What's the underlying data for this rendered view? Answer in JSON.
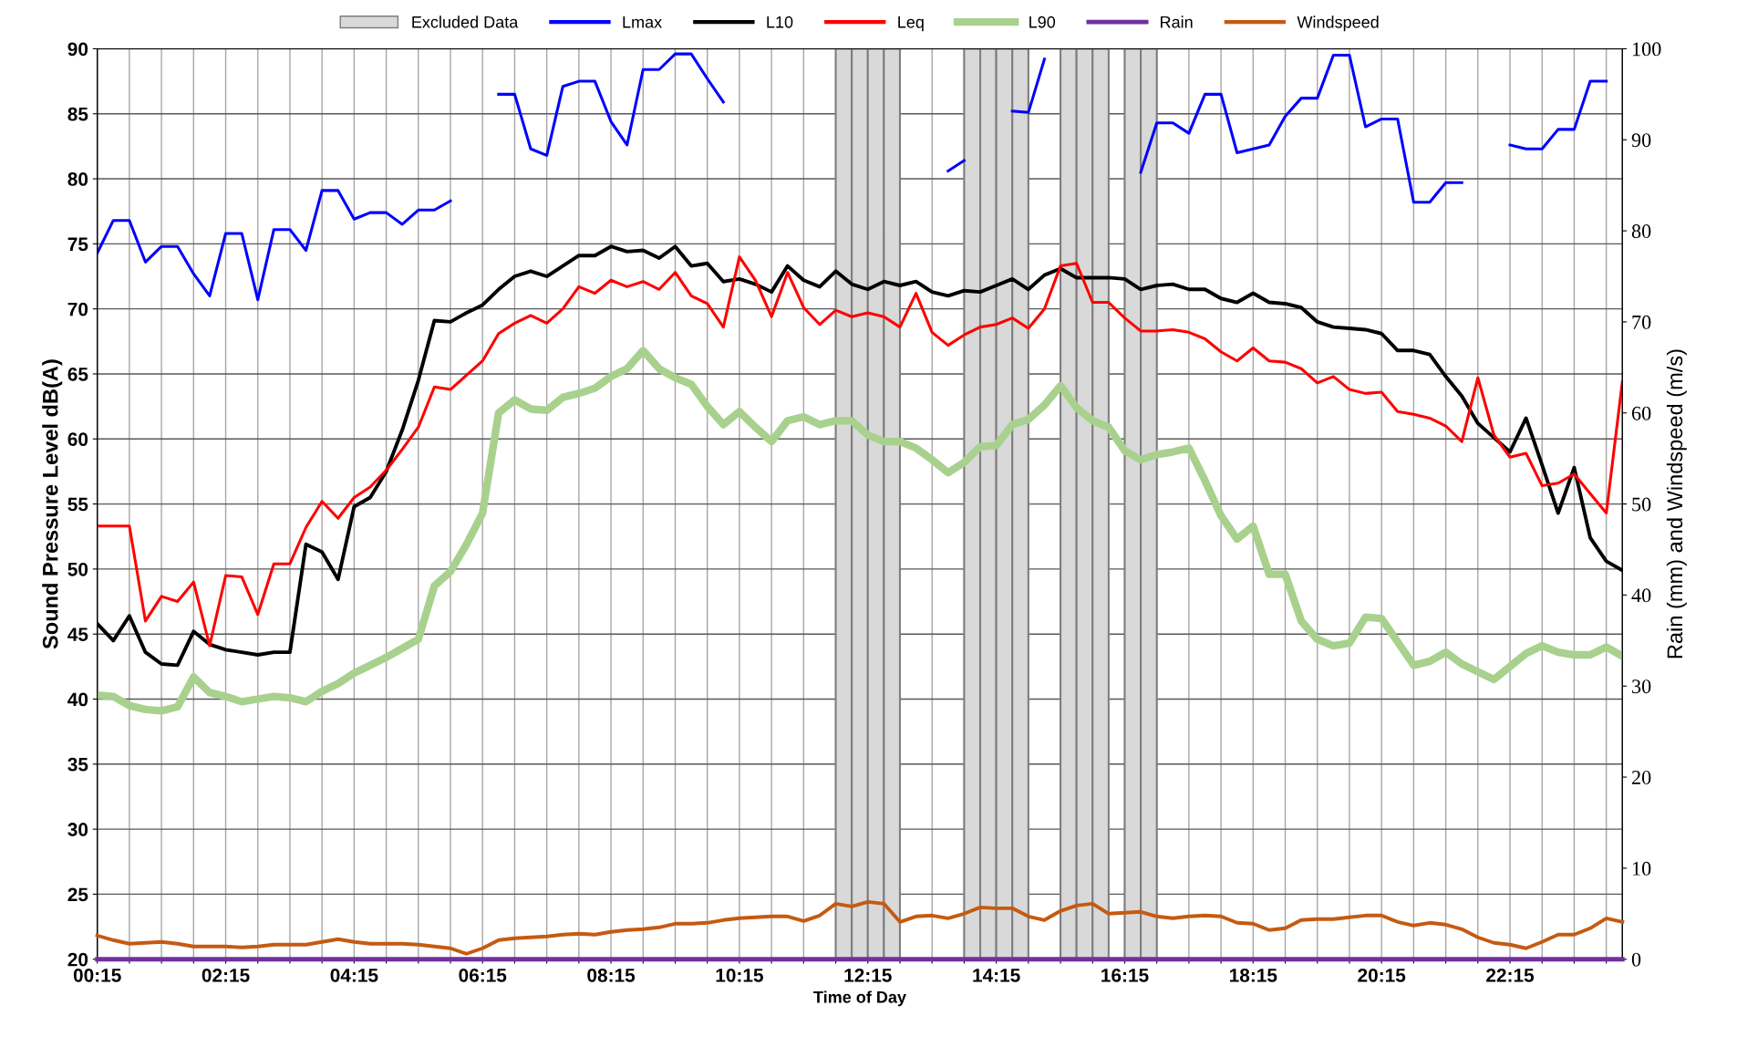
{
  "chart_data": {
    "type": "line",
    "xlabel": "Time of Day",
    "ylabel": "Sound Pressure Level dB(A)",
    "y2label": "Rain (mm) and Windspeed (m/s)",
    "x": [
      0.25,
      0.5,
      0.75,
      1.0,
      1.25,
      1.5,
      1.75,
      2.0,
      2.25,
      2.5,
      2.75,
      3.0,
      3.25,
      3.5,
      3.75,
      4.0,
      4.25,
      4.5,
      4.75,
      5.0,
      5.25,
      5.5,
      5.75,
      6.0,
      6.25,
      6.5,
      6.75,
      7.0,
      7.25,
      7.5,
      7.75,
      8.0,
      8.25,
      8.5,
      8.75,
      9.0,
      9.25,
      9.5,
      9.75,
      10.0,
      10.25,
      10.5,
      10.75,
      11.0,
      11.25,
      11.5,
      11.75,
      12.0,
      12.25,
      12.5,
      12.75,
      13.0,
      13.25,
      13.5,
      13.75,
      14.0,
      14.25,
      14.5,
      14.75,
      15.0,
      15.25,
      15.5,
      15.75,
      16.0,
      16.25,
      16.5,
      16.75,
      17.0,
      17.25,
      17.5,
      17.75,
      18.0,
      18.25,
      18.5,
      18.75,
      19.0,
      19.25,
      19.5,
      19.75,
      20.0,
      20.25,
      20.5,
      20.75,
      21.0,
      21.25,
      21.5,
      21.75,
      22.0,
      22.25,
      22.5,
      22.75,
      23.0,
      23.25,
      23.5,
      23.75,
      24.0
    ],
    "series": [
      {
        "name": "Lmax",
        "color": "#0000ff",
        "values": [
          74.3,
          76.8,
          76.8,
          73.6,
          74.8,
          74.8,
          72.7,
          71.0,
          75.8,
          75.8,
          70.7,
          76.1,
          76.1,
          74.5,
          79.1,
          79.1,
          76.9,
          77.4,
          77.4,
          76.5,
          77.6,
          77.6,
          78.3,
          null,
          null,
          86.5,
          86.5,
          82.3,
          81.8,
          87.1,
          87.5,
          87.5,
          84.4,
          82.6,
          88.4,
          88.4,
          89.6,
          89.6,
          87.7,
          85.9,
          null,
          null,
          null,
          null,
          null,
          null,
          null,
          null,
          null,
          null,
          null,
          null,
          null,
          80.6,
          81.4,
          null,
          null,
          85.2,
          85.1,
          89.2,
          null,
          null,
          null,
          null,
          null,
          80.5,
          84.3,
          84.3,
          83.5,
          86.5,
          86.5,
          82.0,
          82.3,
          82.6,
          84.8,
          86.2,
          86.2,
          89.5,
          89.5,
          84.0,
          84.6,
          84.6,
          78.2,
          78.2,
          79.7,
          79.7,
          null,
          null,
          82.6,
          82.3,
          82.3,
          83.8,
          83.8,
          87.5,
          87.5,
          null
        ]
      },
      {
        "name": "L10",
        "color": "#000000",
        "values": [
          45.8,
          44.5,
          46.4,
          43.6,
          42.7,
          42.6,
          45.2,
          44.2,
          43.8,
          43.6,
          43.4,
          43.6,
          43.6,
          51.9,
          51.3,
          49.2,
          54.8,
          55.5,
          57.5,
          60.7,
          64.5,
          69.1,
          69.0,
          69.7,
          70.3,
          71.5,
          72.5,
          72.9,
          72.5,
          73.3,
          74.1,
          74.1,
          74.8,
          74.4,
          74.5,
          73.9,
          74.8,
          73.3,
          73.5,
          72.1,
          72.3,
          71.9,
          71.3,
          73.3,
          72.2,
          71.7,
          72.9,
          71.9,
          71.5,
          72.1,
          71.8,
          72.1,
          71.3,
          71.0,
          71.4,
          71.3,
          71.8,
          72.3,
          71.5,
          72.6,
          73.1,
          72.4,
          72.4,
          72.4,
          72.3,
          71.5,
          71.8,
          71.9,
          71.5,
          71.5,
          70.8,
          70.5,
          71.2,
          70.5,
          70.4,
          70.1,
          69.0,
          68.6,
          68.5,
          68.4,
          68.1,
          66.8,
          66.8,
          66.5,
          64.8,
          63.3,
          61.2,
          60.1,
          59.0,
          61.6,
          58.0,
          54.3,
          57.8,
          52.4,
          50.6,
          49.9
        ]
      },
      {
        "name": "Leq",
        "color": "#ff0000",
        "values": [
          53.3,
          53.3,
          53.3,
          46.0,
          47.9,
          47.5,
          49.0,
          44.1,
          49.5,
          49.4,
          46.5,
          50.4,
          50.4,
          53.2,
          55.2,
          53.9,
          55.5,
          56.3,
          57.6,
          59.2,
          60.9,
          64.0,
          63.8,
          64.9,
          66.0,
          68.1,
          68.9,
          69.5,
          68.9,
          70.0,
          71.7,
          71.2,
          72.2,
          71.7,
          72.1,
          71.5,
          72.8,
          71.0,
          70.4,
          68.6,
          74.0,
          72.2,
          69.4,
          72.8,
          70.1,
          68.8,
          69.9,
          69.4,
          69.7,
          69.4,
          68.6,
          71.2,
          68.2,
          67.2,
          68.0,
          68.6,
          68.8,
          69.3,
          68.5,
          70.0,
          73.3,
          73.5,
          70.5,
          70.5,
          69.3,
          68.3,
          68.3,
          68.4,
          68.2,
          67.7,
          66.7,
          66.0,
          67.0,
          66.0,
          65.9,
          65.4,
          64.3,
          64.8,
          63.8,
          63.5,
          63.6,
          62.1,
          61.9,
          61.6,
          61.0,
          59.8,
          64.7,
          60.3,
          58.6,
          58.9,
          56.4,
          56.6,
          57.3,
          55.8,
          54.3,
          64.4
        ]
      },
      {
        "name": "L90",
        "color": "#a9d18e",
        "values": [
          40.3,
          40.2,
          39.5,
          39.2,
          39.1,
          39.4,
          41.7,
          40.5,
          40.2,
          39.8,
          40.0,
          40.2,
          40.1,
          39.8,
          40.6,
          41.2,
          42.0,
          42.6,
          43.2,
          43.9,
          44.6,
          48.7,
          49.8,
          51.9,
          54.3,
          62.0,
          63.0,
          62.3,
          62.2,
          63.2,
          63.5,
          63.9,
          64.8,
          65.4,
          66.8,
          65.4,
          64.7,
          64.2,
          62.5,
          61.1,
          62.1,
          60.9,
          59.8,
          61.4,
          61.7,
          61.1,
          61.4,
          61.4,
          60.3,
          59.8,
          59.8,
          59.3,
          58.4,
          57.4,
          58.2,
          59.4,
          59.5,
          61.1,
          61.5,
          62.6,
          64.1,
          62.4,
          61.4,
          60.9,
          59.1,
          58.4,
          58.8,
          59.0,
          59.3,
          56.8,
          54.1,
          52.3,
          53.3,
          49.6,
          49.6,
          46.0,
          44.6,
          44.1,
          44.3,
          46.3,
          46.2,
          44.4,
          42.6,
          42.9,
          43.6,
          42.7,
          42.1,
          41.5,
          42.5,
          43.5,
          44.1,
          43.6,
          43.4,
          43.4,
          44.0,
          43.3
        ]
      },
      {
        "name": "Rain",
        "color": "#7030a0",
        "axis": "y2",
        "values": [
          0,
          0,
          0,
          0,
          0,
          0,
          0,
          0,
          0,
          0,
          0,
          0,
          0,
          0,
          0,
          0,
          0,
          0,
          0,
          0,
          0,
          0,
          0,
          0,
          0,
          0,
          0,
          0,
          0,
          0,
          0,
          0,
          0,
          0,
          0,
          0,
          0,
          0,
          0,
          0,
          0,
          0,
          0,
          0,
          0,
          0,
          0,
          0,
          0,
          0,
          0,
          0,
          0,
          0,
          0,
          0,
          0,
          0,
          0,
          0,
          0,
          0,
          0,
          0,
          0,
          0,
          0,
          0,
          0,
          0,
          0,
          0,
          0,
          0,
          0,
          0,
          0,
          0,
          0,
          0,
          0,
          0,
          0,
          0,
          0,
          0,
          0,
          0,
          0,
          0,
          0,
          0,
          0,
          0,
          0,
          0
        ]
      },
      {
        "name": "Windspeed",
        "color": "#c55a11",
        "axis": "y2",
        "values": [
          2.6,
          2.1,
          1.7,
          1.8,
          1.9,
          1.7,
          1.4,
          1.4,
          1.4,
          1.3,
          1.4,
          1.6,
          1.6,
          1.6,
          1.9,
          2.2,
          1.9,
          1.7,
          1.7,
          1.7,
          1.6,
          1.4,
          1.2,
          0.6,
          1.2,
          2.1,
          2.3,
          2.4,
          2.5,
          2.7,
          2.8,
          2.7,
          3.0,
          3.2,
          3.3,
          3.5,
          3.9,
          3.9,
          4.0,
          4.3,
          4.5,
          4.6,
          4.7,
          4.7,
          4.2,
          4.8,
          6.1,
          5.8,
          6.3,
          6.1,
          4.1,
          4.7,
          4.8,
          4.5,
          5.0,
          5.7,
          5.6,
          5.6,
          4.7,
          4.3,
          5.3,
          5.9,
          6.1,
          5.0,
          5.1,
          5.2,
          4.7,
          4.5,
          4.7,
          4.8,
          4.7,
          4.0,
          3.9,
          3.2,
          3.4,
          4.3,
          4.4,
          4.4,
          4.6,
          4.8,
          4.8,
          4.1,
          3.7,
          4.0,
          3.8,
          3.3,
          2.4,
          1.8,
          1.6,
          1.2,
          1.9,
          2.7,
          2.7,
          3.4,
          4.5,
          4.1
        ]
      }
    ],
    "bands": [
      {
        "axis": "x",
        "from": 11.75,
        "to": 12.0,
        "label": "Excluded Data",
        "color": "#d9d9d9"
      },
      {
        "axis": "x",
        "from": 12.0,
        "to": 12.25,
        "color": "#d9d9d9"
      },
      {
        "axis": "x",
        "from": 12.25,
        "to": 12.5,
        "color": "#d9d9d9"
      },
      {
        "axis": "x",
        "from": 12.5,
        "to": 12.75,
        "color": "#d9d9d9"
      },
      {
        "axis": "x",
        "from": 13.75,
        "to": 14.0,
        "color": "#d9d9d9"
      },
      {
        "axis": "x",
        "from": 14.0,
        "to": 14.25,
        "color": "#d9d9d9"
      },
      {
        "axis": "x",
        "from": 14.25,
        "to": 14.5,
        "color": "#d9d9d9"
      },
      {
        "axis": "x",
        "from": 14.5,
        "to": 14.75,
        "color": "#d9d9d9"
      },
      {
        "axis": "x",
        "from": 15.25,
        "to": 15.5,
        "color": "#d9d9d9"
      },
      {
        "axis": "x",
        "from": 15.5,
        "to": 15.75,
        "color": "#d9d9d9"
      },
      {
        "axis": "x",
        "from": 15.75,
        "to": 16.0,
        "color": "#d9d9d9"
      },
      {
        "axis": "x",
        "from": 16.25,
        "to": 16.5,
        "color": "#d9d9d9"
      },
      {
        "axis": "x",
        "from": 16.5,
        "to": 16.75,
        "color": "#d9d9d9"
      }
    ],
    "xlim": [
      0.25,
      24.0
    ],
    "xticks": [
      {
        "value": 0.25,
        "label": "00:15"
      },
      {
        "value": 0.75,
        "label": null
      },
      {
        "value": 1.25,
        "label": null
      },
      {
        "value": 1.75,
        "label": null
      },
      {
        "value": 2.25,
        "label": "02:15"
      },
      {
        "value": 2.75,
        "label": null
      },
      {
        "value": 3.25,
        "label": null
      },
      {
        "value": 3.75,
        "label": null
      },
      {
        "value": 4.25,
        "label": "04:15"
      },
      {
        "value": 4.75,
        "label": null
      },
      {
        "value": 5.25,
        "label": null
      },
      {
        "value": 5.75,
        "label": null
      },
      {
        "value": 6.25,
        "label": "06:15"
      },
      {
        "value": 6.75,
        "label": null
      },
      {
        "value": 7.25,
        "label": null
      },
      {
        "value": 7.75,
        "label": null
      },
      {
        "value": 8.25,
        "label": "08:15"
      },
      {
        "value": 8.75,
        "label": null
      },
      {
        "value": 9.25,
        "label": null
      },
      {
        "value": 9.75,
        "label": null
      },
      {
        "value": 10.25,
        "label": "10:15"
      },
      {
        "value": 10.75,
        "label": null
      },
      {
        "value": 11.25,
        "label": null
      },
      {
        "value": 11.75,
        "label": null
      },
      {
        "value": 12.25,
        "label": "12:15"
      },
      {
        "value": 12.75,
        "label": null
      },
      {
        "value": 13.25,
        "label": null
      },
      {
        "value": 13.75,
        "label": null
      },
      {
        "value": 14.25,
        "label": "14:15"
      },
      {
        "value": 14.75,
        "label": null
      },
      {
        "value": 15.25,
        "label": null
      },
      {
        "value": 15.75,
        "label": null
      },
      {
        "value": 16.25,
        "label": "16:15"
      },
      {
        "value": 16.75,
        "label": null
      },
      {
        "value": 17.25,
        "label": null
      },
      {
        "value": 17.75,
        "label": null
      },
      {
        "value": 18.25,
        "label": "18:15"
      },
      {
        "value": 18.75,
        "label": null
      },
      {
        "value": 19.25,
        "label": null
      },
      {
        "value": 19.75,
        "label": null
      },
      {
        "value": 20.25,
        "label": "20:15"
      },
      {
        "value": 20.75,
        "label": null
      },
      {
        "value": 21.25,
        "label": null
      },
      {
        "value": 21.75,
        "label": null
      },
      {
        "value": 22.25,
        "label": "22:15"
      },
      {
        "value": 22.75,
        "label": null
      },
      {
        "value": 23.25,
        "label": null
      },
      {
        "value": 23.75,
        "label": null
      }
    ],
    "ylim": [
      20,
      90
    ],
    "yticks": [
      20,
      25,
      30,
      35,
      40,
      45,
      50,
      55,
      60,
      65,
      70,
      75,
      80,
      85,
      90
    ],
    "y2lim": [
      0,
      100
    ],
    "y2ticks": [
      0,
      10,
      20,
      30,
      40,
      50,
      60,
      70,
      80,
      90,
      100
    ],
    "grid": true,
    "legend": "top",
    "marker": "none",
    "line_style": "solid"
  }
}
